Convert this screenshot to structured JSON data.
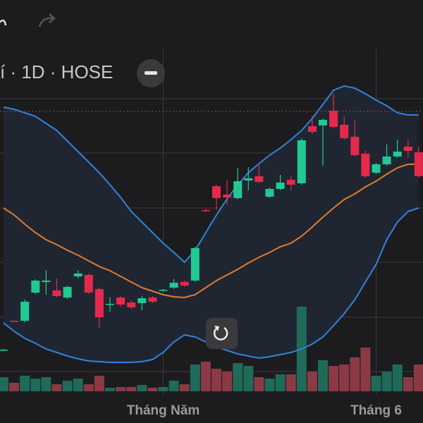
{
  "header": {
    "title": "í · 1D · HOSE"
  },
  "chart_data": {
    "type": "candlestick",
    "ylim": [
      0,
      600
    ],
    "categories": [
      null,
      null,
      null,
      null,
      null,
      null,
      null,
      null,
      null,
      null,
      null,
      null,
      null,
      null,
      null,
      "Tháng Năm",
      null,
      null,
      null,
      null,
      null,
      null,
      null,
      null,
      null,
      null,
      null,
      null,
      null,
      null,
      null,
      null,
      null,
      null,
      null,
      "Tháng 6",
      null,
      null,
      null,
      null
    ],
    "open": [
      103,
      145,
      145,
      185,
      200,
      188,
      178,
      208,
      210,
      190,
      168,
      178,
      171,
      170,
      178,
      188,
      192,
      200,
      202,
      302,
      336,
      324,
      319,
      344,
      350,
      321,
      332,
      345,
      340,
      421,
      422,
      443,
      423,
      406,
      382,
      355,
      367,
      378,
      392,
      384
    ],
    "high": [
      105,
      145,
      175,
      204,
      217,
      205,
      195,
      217,
      212,
      192,
      178,
      180,
      174,
      180,
      180,
      190,
      204,
      202,
      250,
      304,
      338,
      345,
      362,
      363,
      366,
      334,
      352,
      350,
      404,
      435,
      432,
      467,
      435,
      430,
      386,
      369,
      395,
      402,
      402,
      392
    ],
    "low": [
      102,
      144,
      143,
      183,
      182,
      178,
      176,
      205,
      183,
      135,
      158,
      165,
      162,
      160,
      170,
      186,
      190,
      193,
      200,
      299,
      302,
      310,
      317,
      330,
      340,
      319,
      330,
      330,
      338,
      410,
      365,
      418,
      402,
      378,
      348,
      353,
      365,
      376,
      376,
      348
    ],
    "close": [
      104,
      144,
      172,
      202,
      202,
      180,
      193,
      212,
      185,
      150,
      169,
      168,
      164,
      177,
      172,
      189,
      199,
      195,
      248,
      301,
      319,
      320,
      343,
      347,
      342,
      332,
      341,
      338,
      401,
      413,
      430,
      420,
      404,
      380,
      350,
      367,
      378,
      385,
      386,
      350
    ],
    "volume": [
      20,
      12,
      22,
      18,
      20,
      10,
      15,
      18,
      10,
      22,
      5,
      6,
      6,
      9,
      5,
      6,
      15,
      10,
      38,
      42,
      32,
      28,
      40,
      36,
      20,
      18,
      24,
      24,
      120,
      28,
      44,
      36,
      38,
      48,
      62,
      22,
      28,
      38,
      20,
      38
    ],
    "bands": {
      "upper": [
        448,
        445,
        440,
        435,
        425,
        415,
        400,
        385,
        370,
        355,
        338,
        320,
        300,
        285,
        270,
        255,
        242,
        228,
        245,
        270,
        295,
        318,
        338,
        355,
        368,
        380,
        390,
        402,
        415,
        432,
        452,
        472,
        478,
        475,
        467,
        458,
        450,
        440,
        437,
        437
      ],
      "middle": [
        305,
        295,
        282,
        270,
        260,
        253,
        245,
        238,
        230,
        222,
        216,
        208,
        200,
        192,
        187,
        182,
        179,
        178,
        182,
        192,
        202,
        210,
        218,
        227,
        235,
        242,
        250,
        255,
        265,
        278,
        292,
        305,
        317,
        325,
        335,
        343,
        353,
        362,
        367,
        367
      ],
      "lower": [
        142,
        130,
        120,
        113,
        105,
        100,
        95,
        91,
        88,
        87,
        86,
        86,
        86,
        87,
        90,
        100,
        115,
        125,
        122,
        115,
        108,
        103,
        98,
        95,
        92,
        94,
        97,
        100,
        105,
        112,
        122,
        138,
        155,
        175,
        200,
        225,
        260,
        285,
        300,
        305
      ]
    },
    "up_color": "#22c993",
    "down_color": "#e5294c",
    "up_volume_color": "#1f6a58",
    "down_volume_color": "#8b3a45",
    "upper_color": "#3183dc",
    "middle_color": "#e57a2a",
    "lower_color": "#3183dc"
  }
}
